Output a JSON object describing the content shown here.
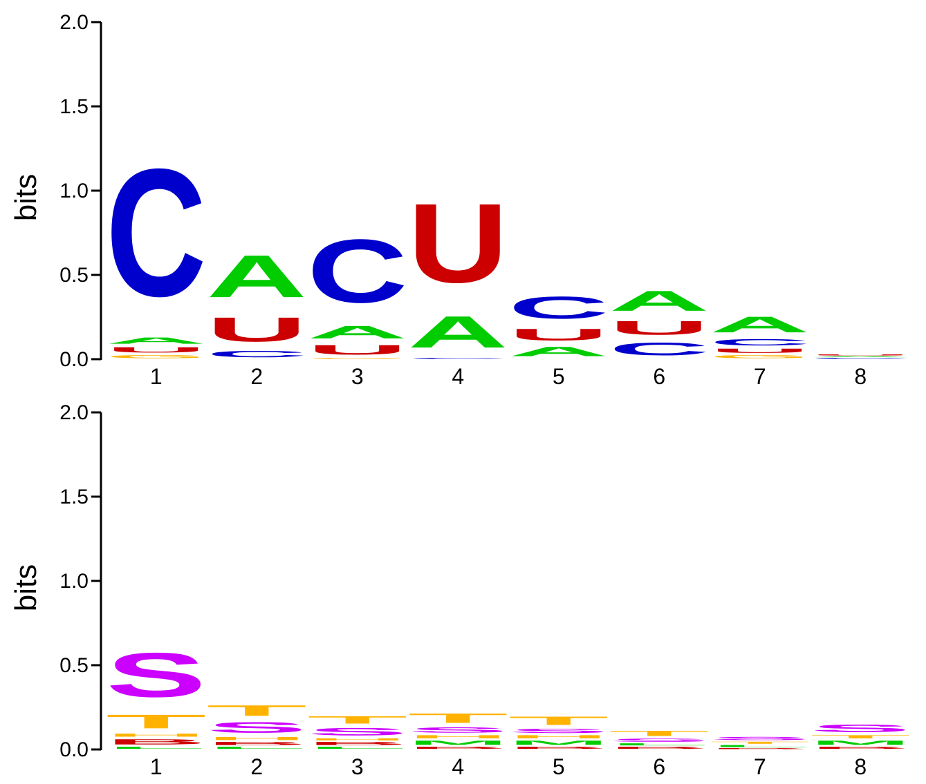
{
  "colors": {
    "A": "#00cc00",
    "C": "#0000cc",
    "G": "#ffb300",
    "U": "#cc0000",
    "S": "#cc00ff",
    "T": "#ffb300",
    "M": "#00cc00",
    "H": "#ffb300",
    "B": "#cc0000",
    "L": "#00cc00",
    "E": "#ffb300"
  },
  "chart_data": [
    {
      "type": "sequence_logo",
      "ylabel": "bits",
      "ylim": [
        0,
        2.0
      ],
      "yticks": [
        "0.0",
        "0.5",
        "1.0",
        "1.5",
        "2.0"
      ],
      "positions": [
        "1",
        "2",
        "3",
        "4",
        "5",
        "6",
        "7",
        "8"
      ],
      "columns": [
        [
          {
            "letter": "G",
            "bits": 0.03
          },
          {
            "letter": "U",
            "bits": 0.05
          },
          {
            "letter": "A",
            "bits": 0.06
          },
          {
            "letter": "C",
            "bits": 1.21
          }
        ],
        [
          {
            "letter": "C",
            "bits": 0.06
          },
          {
            "letter": "U",
            "bits": 0.23
          },
          {
            "letter": "A",
            "bits": 0.4
          }
        ],
        [
          {
            "letter": "G",
            "bits": 0.01
          },
          {
            "letter": "U",
            "bits": 0.09
          },
          {
            "letter": "A",
            "bits": 0.12
          },
          {
            "letter": "C",
            "bits": 0.6
          }
        ],
        [
          {
            "letter": "C",
            "bits": 0.01
          },
          {
            "letter": "A",
            "bits": 0.3
          },
          {
            "letter": "U",
            "bits": 0.75
          }
        ],
        [
          {
            "letter": "A",
            "bits": 0.09
          },
          {
            "letter": "U",
            "bits": 0.11
          },
          {
            "letter": "C",
            "bits": 0.21
          }
        ],
        [
          {
            "letter": "C",
            "bits": 0.12
          },
          {
            "letter": "U",
            "bits": 0.13
          },
          {
            "letter": "A",
            "bits": 0.19
          }
        ],
        [
          {
            "letter": "G",
            "bits": 0.03
          },
          {
            "letter": "U",
            "bits": 0.04
          },
          {
            "letter": "C",
            "bits": 0.06
          },
          {
            "letter": "A",
            "bits": 0.15
          }
        ],
        [
          {
            "letter": "C",
            "bits": 0.01
          },
          {
            "letter": "A",
            "bits": 0.01
          },
          {
            "letter": "U",
            "bits": 0.01
          }
        ]
      ]
    },
    {
      "type": "sequence_logo",
      "ylabel": "bits",
      "ylim": [
        0,
        2.0
      ],
      "yticks": [
        "0.0",
        "0.5",
        "1.0",
        "1.5",
        "2.0"
      ],
      "positions": [
        "1",
        "2",
        "3",
        "4",
        "5",
        "6",
        "7",
        "8"
      ],
      "columns": [
        [
          {
            "letter": "L",
            "bits": 0.02
          },
          {
            "letter": "B",
            "bits": 0.05
          },
          {
            "letter": "H",
            "bits": 0.03
          },
          {
            "letter": "T",
            "bits": 0.13
          },
          {
            "letter": "S",
            "bits": 0.42
          }
        ],
        [
          {
            "letter": "L",
            "bits": 0.02
          },
          {
            "letter": "B",
            "bits": 0.03
          },
          {
            "letter": "H",
            "bits": 0.03
          },
          {
            "letter": "S",
            "bits": 0.1
          },
          {
            "letter": "T",
            "bits": 0.1
          }
        ],
        [
          {
            "letter": "L",
            "bits": 0.02
          },
          {
            "letter": "B",
            "bits": 0.03
          },
          {
            "letter": "H",
            "bits": 0.02
          },
          {
            "letter": "S",
            "bits": 0.07
          },
          {
            "letter": "T",
            "bits": 0.07
          }
        ],
        [
          {
            "letter": "B",
            "bits": 0.02
          },
          {
            "letter": "M",
            "bits": 0.04
          },
          {
            "letter": "H",
            "bits": 0.03
          },
          {
            "letter": "S",
            "bits": 0.05
          },
          {
            "letter": "T",
            "bits": 0.09
          }
        ],
        [
          {
            "letter": "B",
            "bits": 0.02
          },
          {
            "letter": "M",
            "bits": 0.04
          },
          {
            "letter": "H",
            "bits": 0.03
          },
          {
            "letter": "S",
            "bits": 0.04
          },
          {
            "letter": "T",
            "bits": 0.08
          }
        ],
        [
          {
            "letter": "B",
            "bits": 0.02
          },
          {
            "letter": "L",
            "bits": 0.02
          },
          {
            "letter": "S",
            "bits": 0.03
          },
          {
            "letter": "T",
            "bits": 0.05
          }
        ],
        [
          {
            "letter": "B",
            "bits": 0.01
          },
          {
            "letter": "L",
            "bits": 0.02
          },
          {
            "letter": "T",
            "bits": 0.02
          },
          {
            "letter": "S",
            "bits": 0.03
          }
        ],
        [
          {
            "letter": "B",
            "bits": 0.02
          },
          {
            "letter": "M",
            "bits": 0.04
          },
          {
            "letter": "T",
            "bits": 0.03
          },
          {
            "letter": "S",
            "bits": 0.07
          }
        ]
      ]
    }
  ]
}
